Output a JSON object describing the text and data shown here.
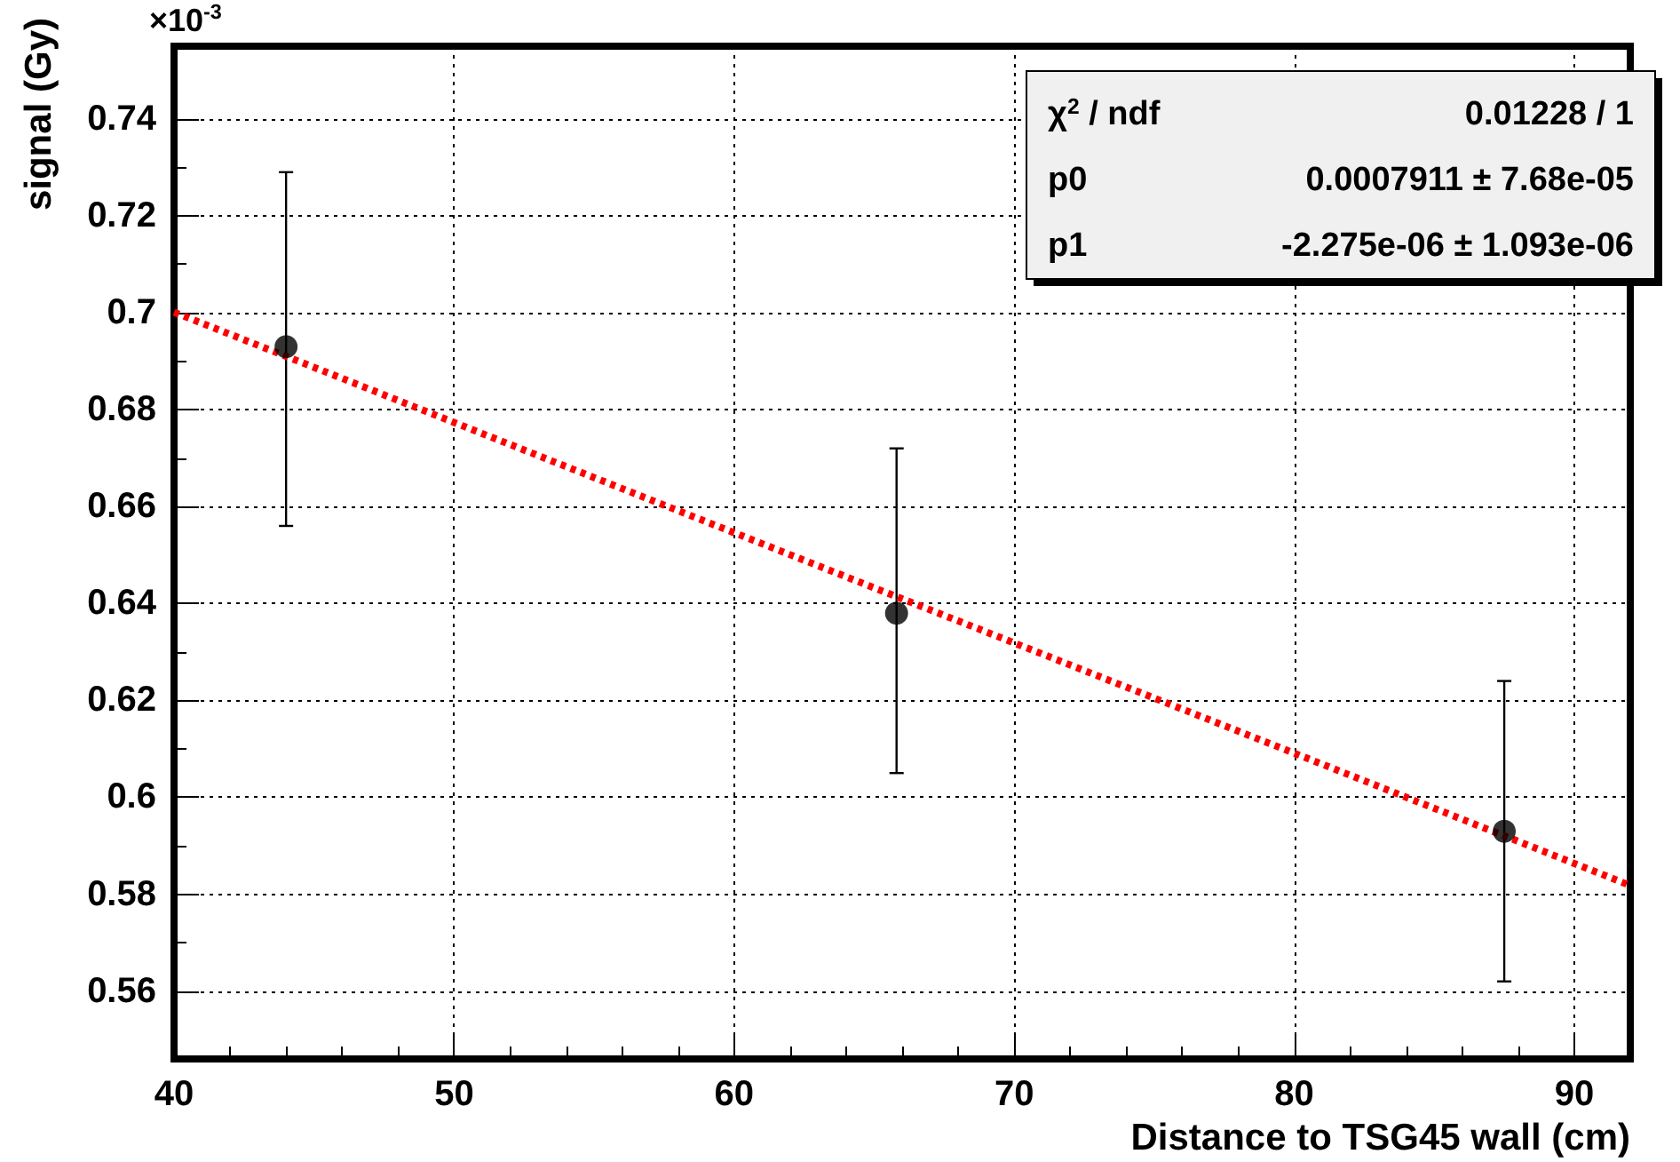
{
  "chart_data": {
    "type": "scatter",
    "xlabel": "Distance to TSG45 wall (cm)",
    "ylabel": "signal (Gy)",
    "annotations": [
      "×10$^{-3}$",
      "χ$^{2}$ / ndf",
      "0.01228 / 1",
      "p0",
      "0.0007911 ± 7.68e-05",
      "p1",
      "-2.275e-06 ± 1.093e-06"
    ],
    "xlim": [
      40,
      92
    ],
    "xticks": [
      40,
      50,
      60,
      70,
      80,
      90
    ],
    "ylim": [
      0.546,
      0.755
    ],
    "yticks": [
      0.56,
      0.58,
      0.6,
      0.62,
      0.64,
      0.66,
      0.68,
      0.7,
      0.72,
      0.74
    ],
    "grid": true,
    "series": [
      {
        "marker": "circle",
        "color": "#000000",
        "x": [
          44,
          65.8,
          87.5
        ],
        "values": [
          0.693,
          0.638,
          0.593
        ],
        "errors": [
          [
            0.656,
            0.729
          ],
          [
            0.605,
            0.672
          ],
          [
            0.562,
            0.624
          ]
        ]
      },
      {
        "type": "line",
        "color": "#ff0000",
        "line_style": "dotted",
        "x": [
          40,
          92
        ],
        "values": [
          0.7001,
          0.5818
        ]
      }
    ]
  }
}
